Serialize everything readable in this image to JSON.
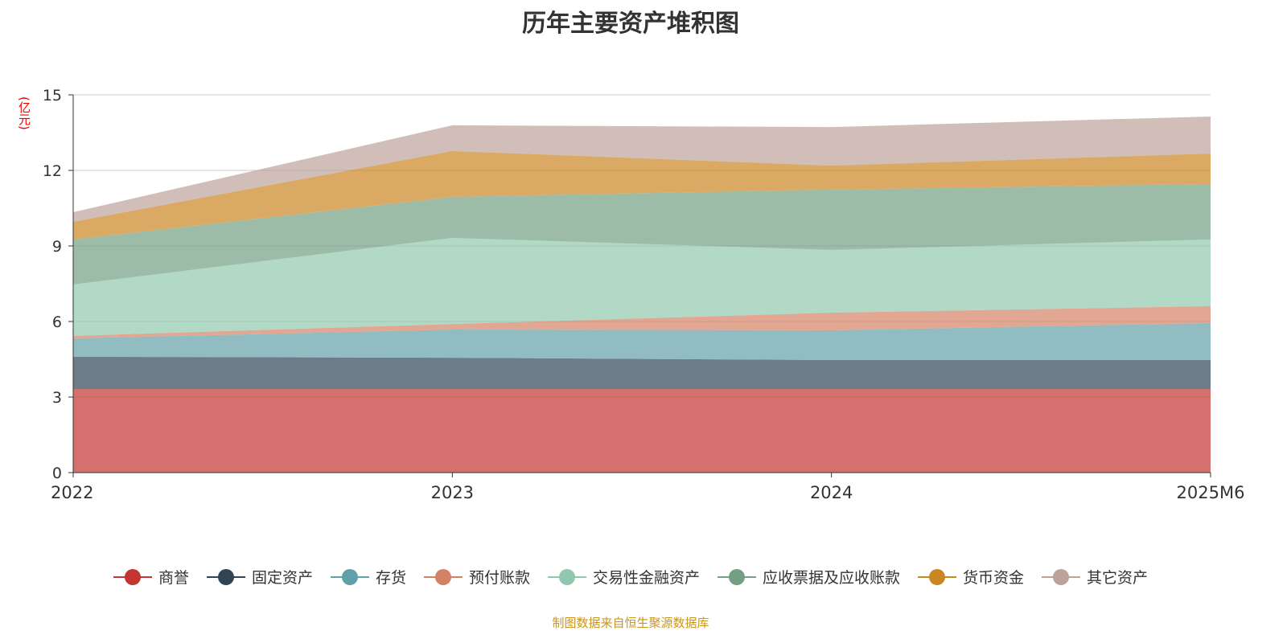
{
  "chart_data": {
    "type": "area",
    "stacked": true,
    "title": "历年主要资产堆积图",
    "ylabel": "(亿元)",
    "xlabel": "",
    "categories": [
      "2022",
      "2023",
      "2024",
      "2025M6"
    ],
    "ylim": [
      0,
      15
    ],
    "yticks": [
      "0",
      "3",
      "6",
      "9",
      "12",
      "15"
    ],
    "grid": true,
    "legend_position": "bottom",
    "series": [
      {
        "name": "商誉",
        "color": "#c23531",
        "values": [
          3.32,
          3.32,
          3.32,
          3.32
        ]
      },
      {
        "name": "固定资产",
        "color": "#2f4554",
        "values": [
          1.28,
          1.24,
          1.15,
          1.15
        ]
      },
      {
        "name": "存货",
        "color": "#61a0a8",
        "values": [
          0.73,
          1.12,
          1.18,
          1.47
        ]
      },
      {
        "name": "预付账款",
        "color": "#d48265",
        "values": [
          0.1,
          0.22,
          0.7,
          0.67
        ]
      },
      {
        "name": "交易性金融资产",
        "color": "#91c7ae",
        "values": [
          2.04,
          3.42,
          2.49,
          2.65
        ]
      },
      {
        "name": "应收票据及应收账款",
        "color": "#749f83",
        "values": [
          1.79,
          1.63,
          2.4,
          2.2
        ]
      },
      {
        "name": "货币资金",
        "color": "#ca8622",
        "values": [
          0.7,
          1.82,
          0.95,
          1.21
        ]
      },
      {
        "name": "其它资产",
        "color": "#bda29a",
        "values": [
          0.38,
          1.02,
          1.53,
          1.47
        ]
      }
    ]
  },
  "source": "制图数据来自恒生聚源数据库"
}
